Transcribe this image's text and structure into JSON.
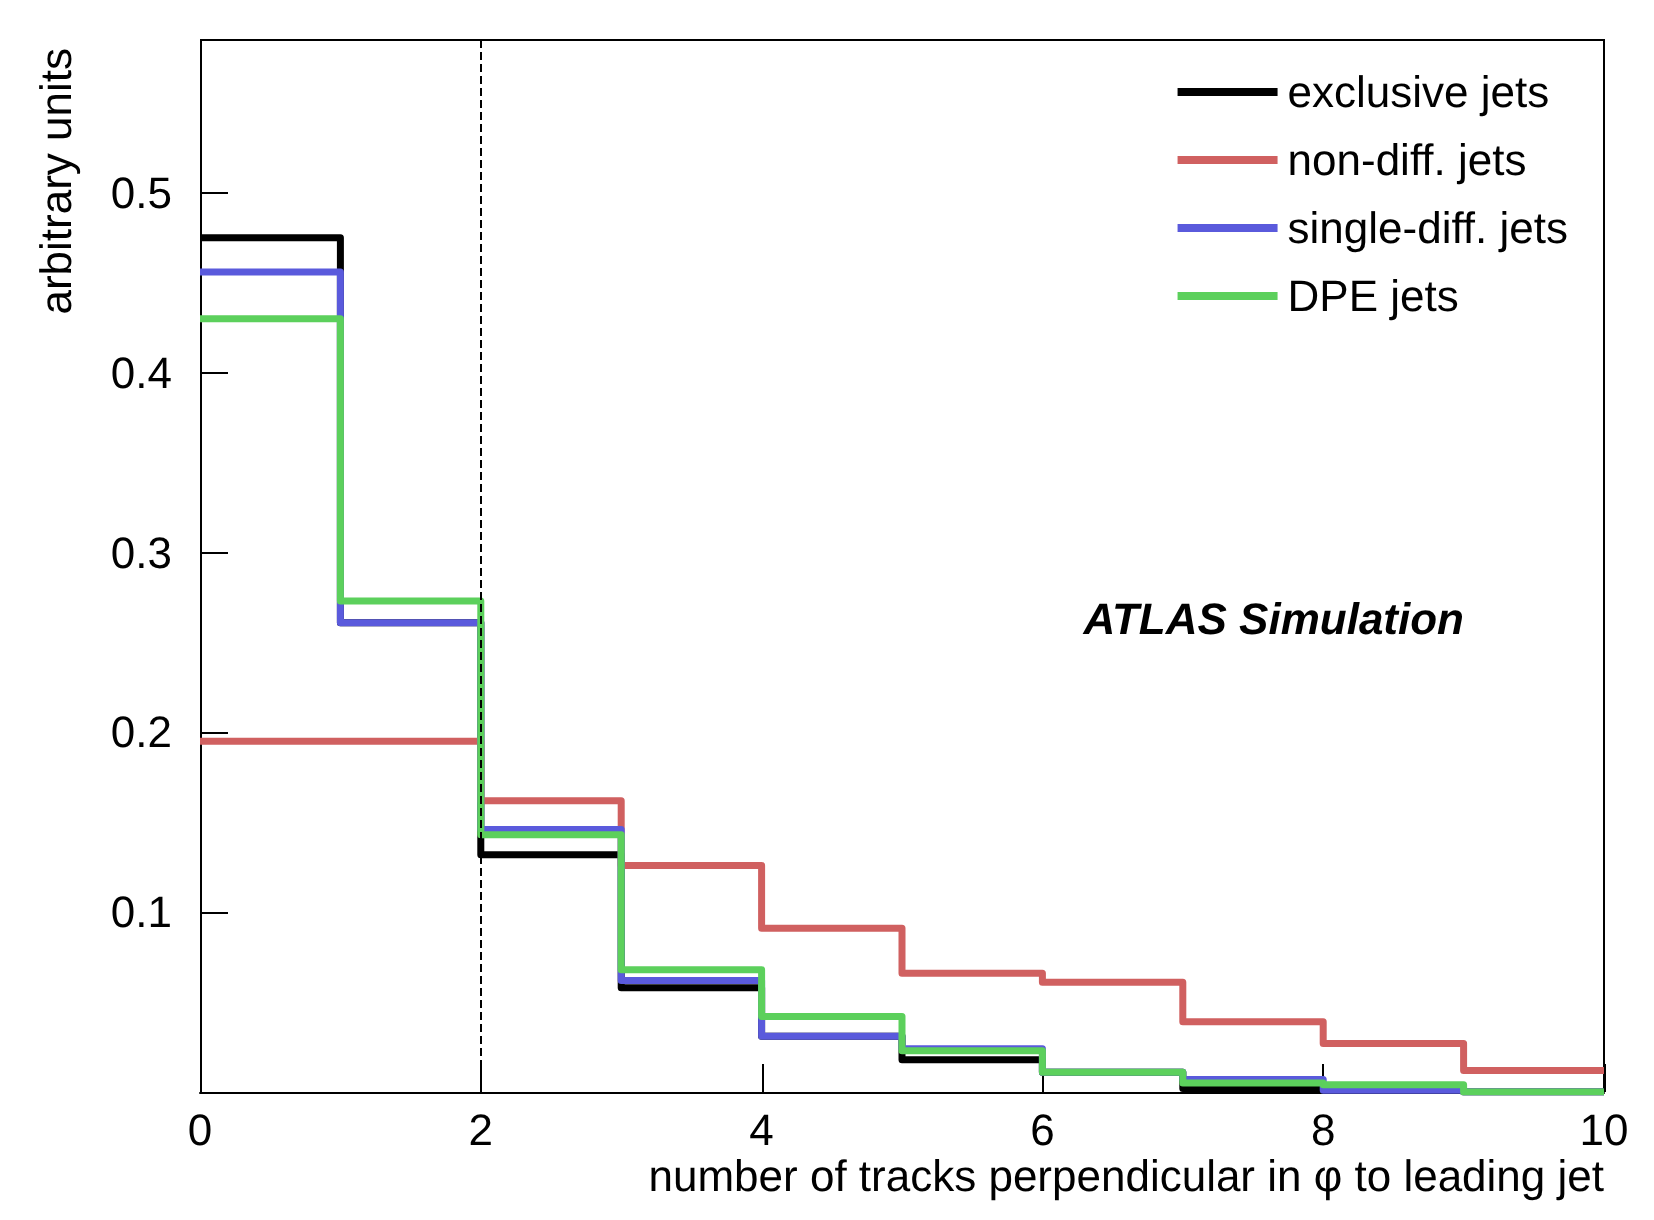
{
  "chart_data": {
    "type": "histogram",
    "xlabel": "number of tracks perpendicular in φ to leading jet",
    "ylabel": "arbitrary units",
    "bins": [
      0,
      1,
      2,
      3,
      4,
      5,
      6,
      7,
      8,
      9,
      10
    ],
    "series": [
      {
        "name": "exclusive jets",
        "color": "#000000",
        "values": [
          0.475,
          0.261,
          0.132,
          0.058,
          0.031,
          0.018,
          0.011,
          0.002,
          0.001,
          0.0
        ]
      },
      {
        "name": "non-diff. jets",
        "color": "#d06060",
        "values": [
          0.195,
          0.195,
          0.162,
          0.126,
          0.091,
          0.066,
          0.061,
          0.039,
          0.027,
          0.012
        ]
      },
      {
        "name": "single-diff. jets",
        "color": "#5a5adc",
        "values": [
          0.456,
          0.261,
          0.146,
          0.062,
          0.031,
          0.024,
          0.011,
          0.007,
          0.001,
          0.0
        ]
      },
      {
        "name": "DPE jets",
        "color": "#5cd05c",
        "values": [
          0.43,
          0.273,
          0.143,
          0.068,
          0.042,
          0.023,
          0.011,
          0.005,
          0.004,
          0.0
        ]
      }
    ],
    "xlim": [
      0,
      10
    ],
    "xticks": [
      0,
      2,
      4,
      6,
      8,
      10
    ],
    "ylim": [
      0,
      0.585
    ],
    "yticks": [
      0.1,
      0.2,
      0.3,
      0.4,
      0.5
    ],
    "ref_lines": [
      {
        "axis": "x",
        "value": 2,
        "line_style": "dashed",
        "color": "#000000"
      }
    ],
    "annotations": [
      "ATLAS Simulation"
    ],
    "legend": "top right",
    "grid": false
  }
}
